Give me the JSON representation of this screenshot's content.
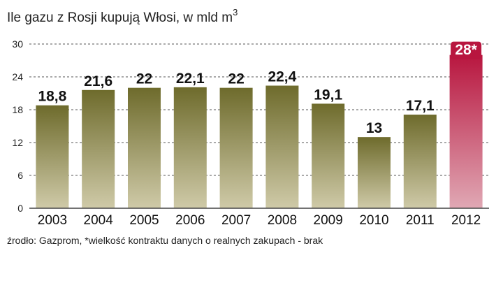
{
  "colors": {
    "bar_top": "#6e6b2c",
    "bar_bottom": "#cfcaa8",
    "highlight_top": "#b8163f",
    "highlight_bottom": "#e0a8b4",
    "grid": "#555555",
    "axis": "#444444"
  },
  "chart_data": {
    "type": "bar",
    "title": "Ile gazu z Rosji kupują Włosi, w mld m",
    "title_superscript": "3",
    "source_note": "źrodło: Gazprom, *wielkość kontraktu danych o realnych zakupach - brak",
    "categories": [
      "2003",
      "2004",
      "2005",
      "2006",
      "2007",
      "2008",
      "2009",
      "2010",
      "2011",
      "2012"
    ],
    "values": [
      18.8,
      21.6,
      22,
      22.1,
      22,
      22.4,
      19.1,
      13,
      17.1,
      28
    ],
    "value_labels": [
      "18,8",
      "21,6",
      "22",
      "22,1",
      "22",
      "22,4",
      "19,1",
      "13",
      "17,1",
      "28*"
    ],
    "highlight_index": 9,
    "yticks": [
      "0",
      "6",
      "12",
      "18",
      "24",
      "30"
    ],
    "ylim": [
      0,
      30
    ],
    "grid": "dashed",
    "xlabel": "",
    "ylabel": ""
  }
}
